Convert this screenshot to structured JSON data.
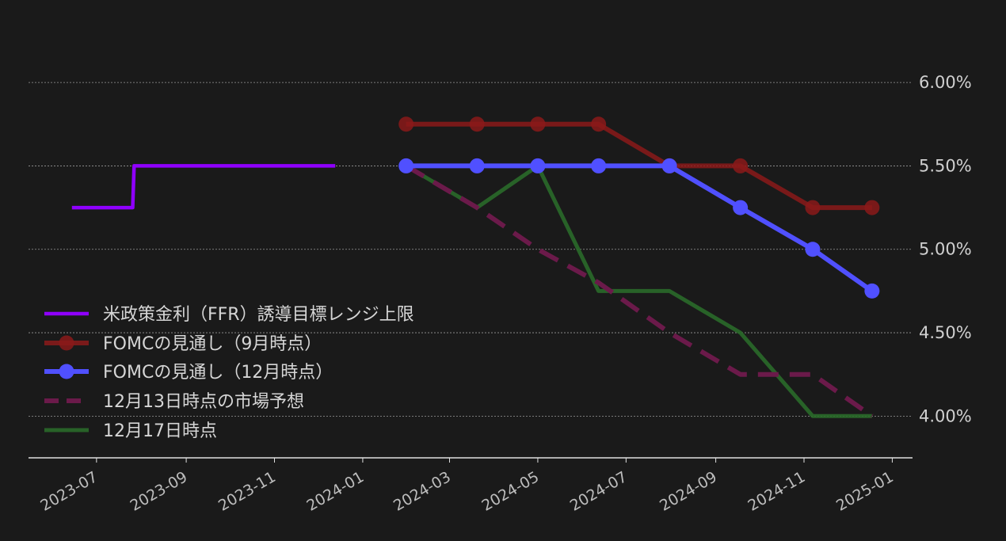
{
  "chart_data": {
    "type": "line",
    "title": "",
    "xlabel": "",
    "ylabel": "",
    "x_ticks": [
      "2023-07",
      "2023-09",
      "2023-11",
      "2024-01",
      "2024-03",
      "2024-05",
      "2024-07",
      "2024-09",
      "2024-11",
      "2025-01"
    ],
    "y_ticks": [
      "4.00%",
      "4.50%",
      "5.00%",
      "5.50%",
      "6.00%"
    ],
    "y_tick_values": [
      4.0,
      4.5,
      5.0,
      5.5,
      6.0
    ],
    "ylim": [
      3.75,
      6.2
    ],
    "xlim": [
      "2023-05-15",
      "2025-01-15"
    ],
    "y_axis_position": "right",
    "grid": "horizontal-dashed",
    "legend_position": "lower-left",
    "series": [
      {
        "name": "米政策金利（FFR）誘導目標レンジ上限",
        "color": "#8f00ff",
        "style": "step",
        "marker": false,
        "dashed": false,
        "x": [
          "2023-06-14",
          "2023-07-26",
          "2023-07-27",
          "2023-12-13"
        ],
        "y": [
          5.25,
          5.25,
          5.5,
          5.5
        ]
      },
      {
        "name": "FOMCの見通し（9月時点）",
        "color": "#8b1a1a",
        "style": "line",
        "marker": true,
        "dashed": false,
        "x": [
          "2024-01-31",
          "2024-03-20",
          "2024-05-01",
          "2024-06-12",
          "2024-07-31",
          "2024-09-18",
          "2024-11-07",
          "2024-12-18"
        ],
        "y": [
          5.75,
          5.75,
          5.75,
          5.75,
          5.5,
          5.5,
          5.25,
          5.25
        ]
      },
      {
        "name": "FOMCの見通し（12月時点）",
        "color": "#5050ff",
        "style": "line",
        "marker": true,
        "dashed": false,
        "x": [
          "2024-01-31",
          "2024-03-20",
          "2024-05-01",
          "2024-06-12",
          "2024-07-31",
          "2024-09-18",
          "2024-11-07",
          "2024-12-18"
        ],
        "y": [
          5.5,
          5.5,
          5.5,
          5.5,
          5.5,
          5.25,
          5.0,
          4.75
        ]
      },
      {
        "name": "12月13日時点の市場予想",
        "color": "#6b1a4a",
        "style": "line",
        "marker": false,
        "dashed": true,
        "x": [
          "2024-01-31",
          "2024-03-20",
          "2024-05-01",
          "2024-06-12",
          "2024-07-31",
          "2024-09-18",
          "2024-11-07",
          "2024-12-18"
        ],
        "y": [
          5.5,
          5.25,
          5.0,
          4.8,
          4.5,
          4.25,
          4.25,
          4.0
        ]
      },
      {
        "name": "12月17日時点",
        "color": "#2a6a2a",
        "style": "line",
        "marker": false,
        "dashed": false,
        "x": [
          "2024-01-31",
          "2024-03-20",
          "2024-05-01",
          "2024-06-12",
          "2024-07-31",
          "2024-09-18",
          "2024-11-07",
          "2024-12-18"
        ],
        "y": [
          5.5,
          5.25,
          5.5,
          4.75,
          4.75,
          4.5,
          4.0,
          4.0
        ]
      }
    ]
  }
}
